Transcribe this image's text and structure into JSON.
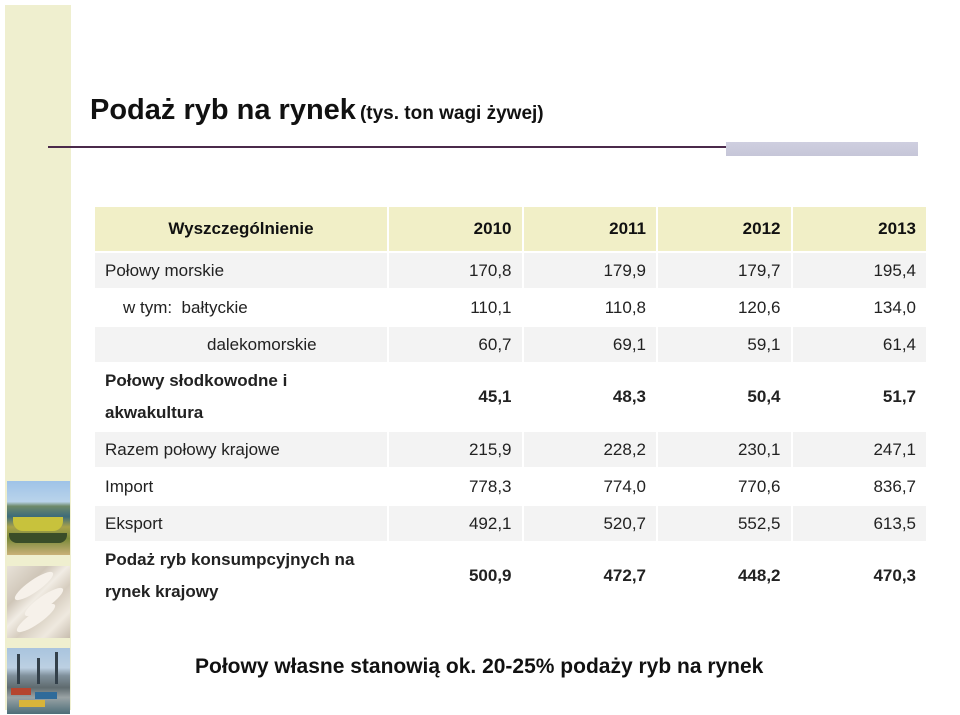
{
  "title": "Podaż ryb na rynek",
  "subtitle": "(tys. ton wagi żywej)",
  "table": {
    "headers": [
      "Wyszczególnienie",
      "2010",
      "2011",
      "2012",
      "2013"
    ],
    "rows": [
      {
        "label": "Połowy morskie",
        "values": [
          "170,8",
          "179,9",
          "179,7",
          "195,4"
        ]
      },
      {
        "label": "w tym:  bałtyckie",
        "values": [
          "110,1",
          "110,8",
          "120,6",
          "134,0"
        ]
      },
      {
        "label": "dalekomorskie",
        "values": [
          "60,7",
          "69,1",
          "59,1",
          "61,4"
        ]
      },
      {
        "label": "Połowy słodkowodne i akwakultura",
        "values": [
          "45,1",
          "48,3",
          "50,4",
          "51,7"
        ]
      },
      {
        "label": "Razem połowy krajowe",
        "values": [
          "215,9",
          "228,2",
          "230,1",
          "247,1"
        ]
      },
      {
        "label": "Import",
        "values": [
          "778,3",
          "774,0",
          "770,6",
          "836,7"
        ]
      },
      {
        "label": "Eksport",
        "values": [
          "492,1",
          "520,7",
          "552,5",
          "613,5"
        ]
      },
      {
        "label": "Podaż ryb konsumpcyjnych na rynek krajowy",
        "values": [
          "500,9",
          "472,7",
          "448,2",
          "470,3"
        ]
      }
    ]
  },
  "footnote": "Połowy własne stanowią ok. 20-25% podaży ryb na rynek",
  "colors": {
    "header_bg": "#f1efc7",
    "row_shade": "#f3f3f3",
    "left_strip": "#efefcf",
    "rule": "#4b2a4b"
  }
}
